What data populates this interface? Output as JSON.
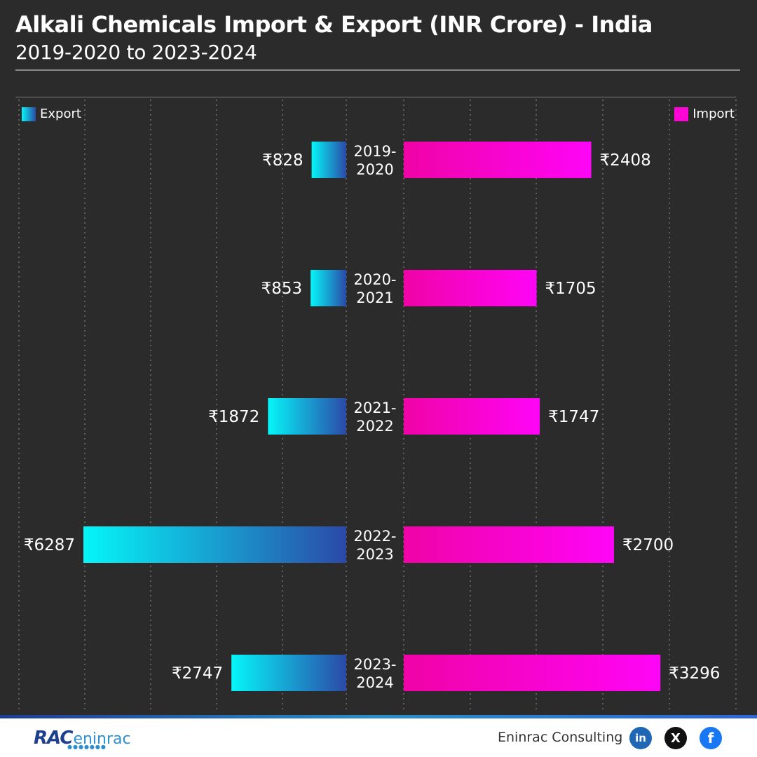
{
  "header": {
    "title": "Alkali Chemicals Import & Export (INR Crore) - India",
    "subtitle": "2019-2020 to 2023-2024"
  },
  "legend": {
    "export_label": "Export",
    "import_label": "Import"
  },
  "chart_data": {
    "type": "bar",
    "title": "Alkali Chemicals Import & Export (INR Crore) - India",
    "subtitle": "2019-2020 to 2023-2024",
    "categories": [
      [
        "2019-",
        "2020"
      ],
      [
        "2020-",
        "2021"
      ],
      [
        "2021-",
        "2022"
      ],
      [
        "2022-",
        "2023"
      ],
      [
        "2023-",
        "2024"
      ]
    ],
    "series": [
      {
        "name": "Export",
        "values": [
          828,
          853,
          1872,
          6287,
          2747
        ],
        "labels": [
          "₹828",
          "₹853",
          "₹1872",
          "₹6287",
          "₹2747"
        ],
        "color": "#05f6f8"
      },
      {
        "name": "Import",
        "values": [
          2408,
          1705,
          1747,
          2700,
          3296
        ],
        "labels": [
          "₹2408",
          "₹1705",
          "₹1747",
          "₹2700",
          "₹3296"
        ],
        "color": "#ff05d6"
      }
    ],
    "grid": true,
    "legend_placement": "top (Export top-left, Import top-right)"
  },
  "footer": {
    "logo_rac": "RAC",
    "logo_eninrac": "eninrac",
    "company": "Eninrac Consulting",
    "social": {
      "linkedin": "in",
      "x": "X",
      "facebook": "f"
    }
  },
  "colors": {
    "background": "#2b2b2b",
    "export_start": "#05f6f8",
    "export_end": "#2b49a8",
    "import_start": "#f003a6",
    "import_end": "#ff05f7"
  }
}
